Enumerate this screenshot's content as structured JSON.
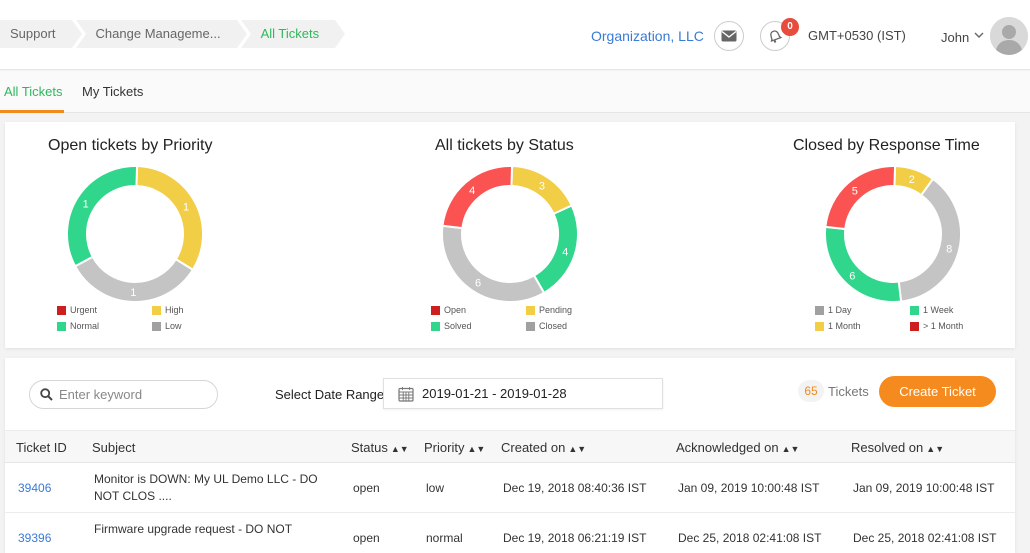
{
  "breadcrumb": [
    "Support",
    "Change Manageme...",
    "All Tickets"
  ],
  "header": {
    "org": "Organization, LLC",
    "notif_count": "0",
    "timezone": "GMT+0530 (IST)",
    "user": "John"
  },
  "tabs": [
    "All Tickets",
    "My Tickets"
  ],
  "colors": {
    "red": "#fb5352",
    "yellow": "#f2cd46",
    "green": "#2fd68c",
    "grey": "#c4c4c4",
    "accent_orange": "#f58b1e",
    "active_green": "#2eb85c"
  },
  "chart_data": [
    {
      "type": "pie",
      "title": "Open tickets by Priority",
      "slices": [
        {
          "name": "High",
          "value": 1,
          "color": "#f2cd46"
        },
        {
          "name": "Low",
          "value": 1,
          "color": "#c4c4c4"
        },
        {
          "name": "Normal",
          "value": 1,
          "color": "#2fd68c"
        }
      ],
      "legend": [
        {
          "name": "Urgent",
          "color": "#cc1f1f"
        },
        {
          "name": "High",
          "color": "#f2cd46"
        },
        {
          "name": "Normal",
          "color": "#2fd68c"
        },
        {
          "name": "Low",
          "color": "#a0a0a0"
        }
      ]
    },
    {
      "type": "pie",
      "title": "All tickets by Status",
      "slices": [
        {
          "name": "Pending",
          "value": 3,
          "color": "#f2cd46"
        },
        {
          "name": "Solved",
          "value": 4,
          "color": "#2fd68c"
        },
        {
          "name": "Closed",
          "value": 6,
          "color": "#c4c4c4"
        },
        {
          "name": "Open",
          "value": 4,
          "color": "#fb5352"
        }
      ],
      "legend": [
        {
          "name": "Open",
          "color": "#cc1f1f"
        },
        {
          "name": "Pending",
          "color": "#f2cd46"
        },
        {
          "name": "Solved",
          "color": "#2fd68c"
        },
        {
          "name": "Closed",
          "color": "#a0a0a0"
        }
      ]
    },
    {
      "type": "pie",
      "title": "Closed by Response Time",
      "slices": [
        {
          "name": "1 Month",
          "value": 2,
          "color": "#f2cd46"
        },
        {
          "name": "1 Day",
          "value": 8,
          "color": "#c4c4c4"
        },
        {
          "name": "1 Week",
          "value": 6,
          "color": "#2fd68c"
        },
        {
          "name": "> 1 Month",
          "value": 5,
          "color": "#fb5352"
        }
      ],
      "legend": [
        {
          "name": "1 Day",
          "color": "#a0a0a0"
        },
        {
          "name": "1 Week",
          "color": "#2fd68c"
        },
        {
          "name": "1 Month",
          "color": "#f2cd46"
        },
        {
          "name": "> 1 Month",
          "color": "#cc1f1f"
        }
      ]
    }
  ],
  "toolbar": {
    "search_placeholder": "Enter keyword",
    "date_label": "Select Date Range",
    "date_range": "2019-01-21 - 2019-01-28",
    "ticket_count": "65",
    "tickets_label": "Tickets",
    "create_label": "Create Ticket"
  },
  "table": {
    "headers": [
      "Ticket ID",
      "Subject",
      "Status",
      "Priority",
      "Created on",
      "Acknowledged on",
      "Resolved on"
    ],
    "sortable": [
      false,
      false,
      true,
      true,
      true,
      true,
      true
    ],
    "rows": [
      [
        "39406",
        "Monitor is DOWN: My UL Demo LLC - DO NOT CLOS ....",
        "open",
        "low",
        "Dec 19, 2018 08:40:36 IST",
        "Jan 09, 2019 10:00:48 IST",
        "Jan 09, 2019 10:00:48 IST"
      ],
      [
        "39396",
        "Firmware upgrade request - DO NOT",
        "open",
        "normal",
        "Dec 19, 2018 06:21:19 IST",
        "Dec 25, 2018 02:41:08 IST",
        "Dec 25, 2018 02:41:08 IST"
      ]
    ]
  }
}
